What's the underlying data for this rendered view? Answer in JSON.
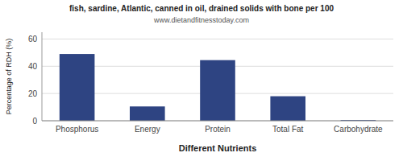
{
  "chart_data": {
    "type": "bar",
    "title": "fish, sardine, Atlantic, canned in oil, drained solids with bone per 100",
    "subtitle": "www.dietandfitnesstoday.com",
    "categories": [
      "Phosphorus",
      "Energy",
      "Protein",
      "Total Fat",
      "Carbohydrate"
    ],
    "values": [
      49,
      10.5,
      44.5,
      18,
      0.5
    ],
    "color": "#2e4482",
    "xlabel": "Different Nutrients",
    "ylabel": "Percentage of RDH (%)",
    "ylim": [
      0,
      65
    ],
    "yticks": [
      0,
      20,
      40,
      60
    ],
    "grid": true
  }
}
